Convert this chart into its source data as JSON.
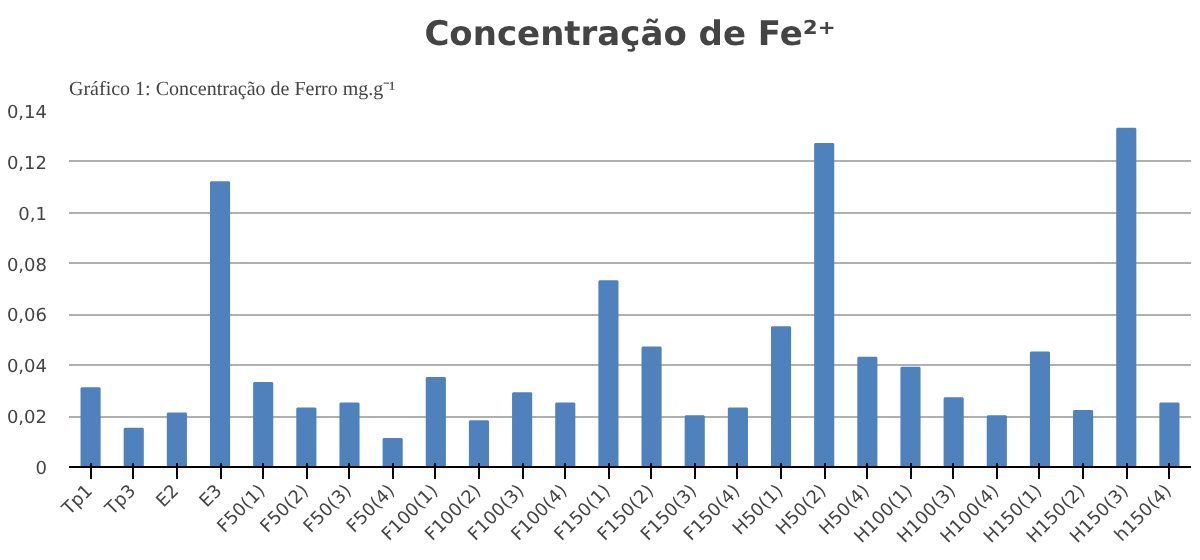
{
  "chart_data": {
    "type": "bar",
    "title": "Concentração de Fe²⁺",
    "annotations": [
      "Gráfico 1: Concentração de Ferro mg.g⁻¹"
    ],
    "categories": [
      "Tp1",
      "Tp3",
      "E2",
      "E3",
      "F50(1)",
      "F50(2)",
      "F50(3)",
      "F50(4)",
      "F100(1)",
      "F100(2)",
      "F100(3)",
      "F100(4)",
      "F150(1)",
      "F150(2)",
      "F150(3)",
      "F150(4)",
      "H50(1)",
      "H50(2)",
      "H50(4)",
      "H100(1)",
      "H100(3)",
      "H100(4)",
      "H150(1)",
      "H150(2)",
      "H150(3)",
      "h150(4)"
    ],
    "values": [
      0.031,
      0.015,
      0.021,
      0.112,
      0.033,
      0.023,
      0.025,
      0.011,
      0.035,
      0.018,
      0.029,
      0.025,
      0.073,
      0.047,
      0.02,
      0.023,
      0.055,
      0.127,
      0.043,
      0.039,
      0.027,
      0.02,
      0.045,
      0.022,
      0.133,
      0.025
    ],
    "color": "#4f81bd",
    "ylim": [
      0,
      0.14
    ],
    "yticks": [
      {
        "value": 0,
        "label": "0"
      },
      {
        "value": 0.02,
        "label": "0,02"
      },
      {
        "value": 0.04,
        "label": "0,04"
      },
      {
        "value": 0.06,
        "label": "0,06"
      },
      {
        "value": 0.08,
        "label": "0,08"
      },
      {
        "value": 0.1,
        "label": "0,1"
      },
      {
        "value": 0.12,
        "label": "0,12"
      },
      {
        "value": 0.14,
        "label": "0,14"
      }
    ],
    "grid": "y"
  }
}
